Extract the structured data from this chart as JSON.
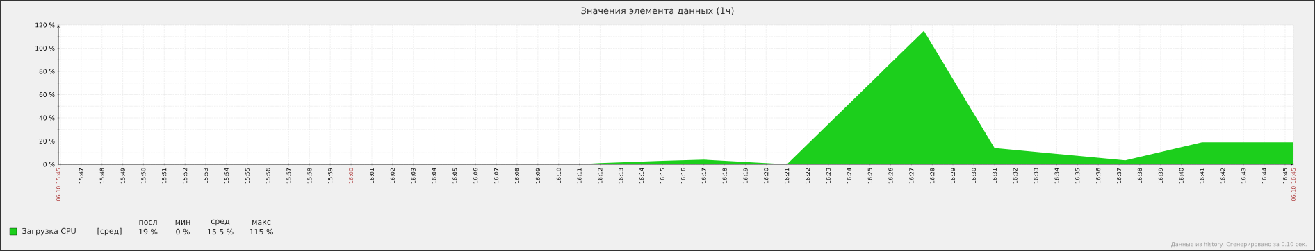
{
  "chart_data": {
    "type": "area",
    "title": "Значения элемента данных (1ч)",
    "x": [
      15.765,
      16.1833,
      16.2,
      16.25,
      16.2833,
      16.35,
      16.46,
      16.5167,
      16.6217,
      16.6833,
      16.7567
    ],
    "series": [
      {
        "name": "Загрузка CPU",
        "color": "#1ccf1c",
        "values": [
          0,
          0,
          1,
          3,
          4,
          0,
          115,
          14,
          3.5,
          19,
          19
        ]
      }
    ],
    "xlim": [
      15.765,
      16.7567
    ],
    "xticks": [
      {
        "value": 15.765,
        "label": "06.10 15:45"
      },
      {
        "value": 15.7667,
        "label": null
      },
      {
        "value": 15.7833,
        "label": "15:47"
      },
      {
        "value": 15.8,
        "label": "15:48"
      },
      {
        "value": 15.8167,
        "label": "15:49"
      },
      {
        "value": 15.8333,
        "label": "15:50"
      },
      {
        "value": 15.85,
        "label": "15:51"
      },
      {
        "value": 15.8667,
        "label": "15:52"
      },
      {
        "value": 15.8833,
        "label": "15:53"
      },
      {
        "value": 15.9,
        "label": "15:54"
      },
      {
        "value": 15.9167,
        "label": "15:55"
      },
      {
        "value": 15.9333,
        "label": "15:56"
      },
      {
        "value": 15.95,
        "label": "15:57"
      },
      {
        "value": 15.9667,
        "label": "15:58"
      },
      {
        "value": 15.9833,
        "label": "15:59"
      },
      {
        "value": 16,
        "label": "16:00"
      },
      {
        "value": 16.0167,
        "label": "16:01"
      },
      {
        "value": 16.0333,
        "label": "16:02"
      },
      {
        "value": 16.05,
        "label": "16:03"
      },
      {
        "value": 16.0667,
        "label": "16:04"
      },
      {
        "value": 16.0833,
        "label": "16:05"
      },
      {
        "value": 16.1,
        "label": "16:06"
      },
      {
        "value": 16.1167,
        "label": "16:07"
      },
      {
        "value": 16.1333,
        "label": "16:08"
      },
      {
        "value": 16.15,
        "label": "16:09"
      },
      {
        "value": 16.1667,
        "label": "16:10"
      },
      {
        "value": 16.1833,
        "label": "16:11"
      },
      {
        "value": 16.2,
        "label": "16:12"
      },
      {
        "value": 16.2167,
        "label": "16:13"
      },
      {
        "value": 16.2333,
        "label": "16:14"
      },
      {
        "value": 16.25,
        "label": "16:15"
      },
      {
        "value": 16.2667,
        "label": "16:16"
      },
      {
        "value": 16.2833,
        "label": "16:17"
      },
      {
        "value": 16.3,
        "label": "16:18"
      },
      {
        "value": 16.3167,
        "label": "16:19"
      },
      {
        "value": 16.3333,
        "label": "16:20"
      },
      {
        "value": 16.35,
        "label": "16:21"
      },
      {
        "value": 16.3667,
        "label": "16:22"
      },
      {
        "value": 16.3833,
        "label": "16:23"
      },
      {
        "value": 16.4,
        "label": "16:24"
      },
      {
        "value": 16.4167,
        "label": "16:25"
      },
      {
        "value": 16.4333,
        "label": "16:26"
      },
      {
        "value": 16.45,
        "label": "16:27"
      },
      {
        "value": 16.4667,
        "label": "16:28"
      },
      {
        "value": 16.4833,
        "label": "16:29"
      },
      {
        "value": 16.5,
        "label": "16:30"
      },
      {
        "value": 16.5167,
        "label": "16:31"
      },
      {
        "value": 16.5333,
        "label": "16:32"
      },
      {
        "value": 16.55,
        "label": "16:33"
      },
      {
        "value": 16.5667,
        "label": "16:34"
      },
      {
        "value": 16.5833,
        "label": "16:35"
      },
      {
        "value": 16.6,
        "label": "16:36"
      },
      {
        "value": 16.6167,
        "label": "16:37"
      },
      {
        "value": 16.6333,
        "label": "16:38"
      },
      {
        "value": 16.65,
        "label": "16:39"
      },
      {
        "value": 16.6667,
        "label": "16:40"
      },
      {
        "value": 16.6833,
        "label": "16:41"
      },
      {
        "value": 16.7,
        "label": "16:42"
      },
      {
        "value": 16.7167,
        "label": "16:43"
      },
      {
        "value": 16.7333,
        "label": "16:44"
      },
      {
        "value": 16.75,
        "label": "16:45"
      },
      {
        "value": 16.7567,
        "label": "06.10 16:45"
      }
    ],
    "ylim": [
      0,
      120
    ],
    "yticks": [
      {
        "value": 0,
        "label": "0 %"
      },
      {
        "value": 10,
        "label": null
      },
      {
        "value": 20,
        "label": "20 %"
      },
      {
        "value": 30,
        "label": null
      },
      {
        "value": 40,
        "label": "40 %"
      },
      {
        "value": 50,
        "label": null
      },
      {
        "value": 60,
        "label": "60 %"
      },
      {
        "value": 70,
        "label": null
      },
      {
        "value": 80,
        "label": "80 %"
      },
      {
        "value": 90,
        "label": null
      },
      {
        "value": 100,
        "label": "100 %"
      },
      {
        "value": 110,
        "label": null
      },
      {
        "value": 120,
        "label": "120 %"
      }
    ],
    "grid": true,
    "legend": "bottom left",
    "annotations": [
      "[сред]",
      "посл",
      "мин",
      "сред",
      "макс",
      "19 %",
      "0 %",
      "15.5 %",
      "115 %",
      "Данные из history. Сгенерировано за 0.10 сек."
    ]
  }
}
